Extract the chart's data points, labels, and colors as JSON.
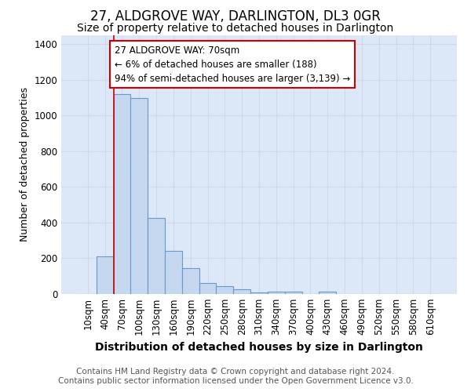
{
  "title": "27, ALDGROVE WAY, DARLINGTON, DL3 0GR",
  "subtitle": "Size of property relative to detached houses in Darlington",
  "xlabel": "Distribution of detached houses by size in Darlington",
  "ylabel": "Number of detached properties",
  "footer_line1": "Contains HM Land Registry data © Crown copyright and database right 2024.",
  "footer_line2": "Contains public sector information licensed under the Open Government Licence v3.0.",
  "bin_labels": [
    "10sqm",
    "40sqm",
    "70sqm",
    "100sqm",
    "130sqm",
    "160sqm",
    "190sqm",
    "220sqm",
    "250sqm",
    "280sqm",
    "310sqm",
    "340sqm",
    "370sqm",
    "400sqm",
    "430sqm",
    "460sqm",
    "490sqm",
    "520sqm",
    "550sqm",
    "580sqm",
    "610sqm"
  ],
  "bar_values": [
    0,
    210,
    1120,
    1100,
    425,
    240,
    145,
    60,
    42,
    25,
    10,
    15,
    15,
    0,
    13,
    0,
    0,
    0,
    0,
    0,
    0
  ],
  "bar_color": "#c5d8f0",
  "bar_edge_color": "#6699cc",
  "bar_edge_width": 0.8,
  "grid_color": "#d0d8e8",
  "plot_bg_color": "#dce8f8",
  "fig_bg_color": "#ffffff",
  "annotation_text": "27 ALDGROVE WAY: 70sqm\n← 6% of detached houses are smaller (188)\n94% of semi-detached houses are larger (3,139) →",
  "annotation_box_color": "#ffffff",
  "annotation_box_edge_color": "#cc0000",
  "red_line_x": 2,
  "ylim": [
    0,
    1450
  ],
  "yticks": [
    0,
    200,
    400,
    600,
    800,
    1000,
    1200,
    1400
  ],
  "title_fontsize": 12,
  "subtitle_fontsize": 10,
  "xlabel_fontsize": 10,
  "ylabel_fontsize": 9,
  "tick_fontsize": 8.5,
  "footer_fontsize": 7.5,
  "annotation_fontsize": 8.5
}
